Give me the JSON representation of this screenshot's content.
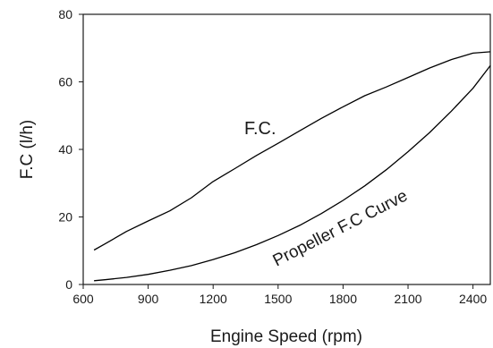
{
  "chart_data": {
    "type": "line",
    "title": "",
    "xlabel": "Engine Speed (rpm)",
    "ylabel": "F.C (l/h)",
    "xlim": [
      600,
      2480
    ],
    "ylim": [
      0,
      80
    ],
    "x_ticks": [
      600,
      900,
      1200,
      1500,
      1800,
      2100,
      2400
    ],
    "y_ticks": [
      0,
      20,
      40,
      60,
      80
    ],
    "grid": false,
    "legend": "none",
    "series": [
      {
        "name": "F.C.",
        "color": "#000000",
        "x": [
          650,
          700,
          800,
          900,
          1000,
          1100,
          1200,
          1300,
          1400,
          1500,
          1600,
          1700,
          1800,
          1900,
          2000,
          2100,
          2200,
          2300,
          2400,
          2480
        ],
        "y": [
          10.2,
          12,
          15.7,
          18.8,
          21.8,
          25.7,
          30.5,
          34.3,
          38.2,
          41.8,
          45.5,
          49.2,
          52.6,
          55.9,
          58.5,
          61.3,
          64.1,
          66.6,
          68.5,
          68.9
        ]
      },
      {
        "name": "Propeller F.C Curve",
        "color": "#000000",
        "x": [
          650,
          700,
          800,
          900,
          1000,
          1100,
          1200,
          1300,
          1400,
          1500,
          1600,
          1700,
          1800,
          1900,
          2000,
          2100,
          2200,
          2300,
          2400,
          2480
        ],
        "y": [
          1.1,
          1.4,
          2.1,
          3.0,
          4.2,
          5.6,
          7.4,
          9.4,
          11.8,
          14.5,
          17.5,
          21.0,
          24.9,
          29.2,
          34.0,
          39.3,
          45.0,
          51.3,
          58.1,
          64.8
        ]
      }
    ],
    "annotations": [
      {
        "text": "F.C.",
        "series": 0
      },
      {
        "text": "Propeller F.C Curve",
        "series": 1
      }
    ]
  }
}
